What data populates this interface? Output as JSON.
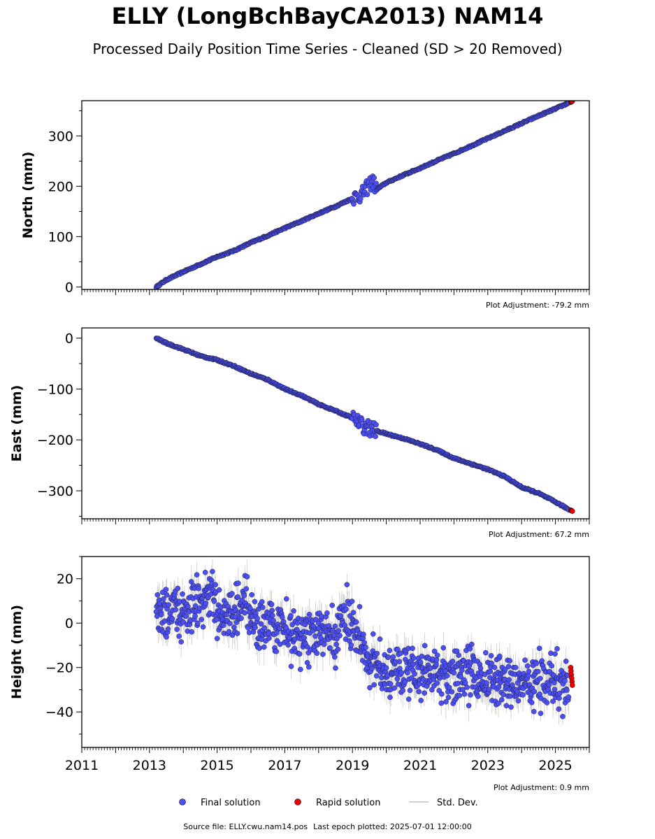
{
  "header": {
    "title": "ELLY (LongBchBayCA2013) NAM14",
    "subtitle": "Processed Daily Position Time Series - Cleaned (SD > 20 Removed)"
  },
  "footer": {
    "source": "Source file: ELLY.cwu.nam14.pos",
    "last_epoch": "Last epoch plotted: 2025-07-01 12:00:00"
  },
  "legend": {
    "final_label": "Final solution",
    "rapid_label": "Rapid solution",
    "std_label": "Std. Dev."
  },
  "colors": {
    "final": "#4b4ef2",
    "rapid": "#e60000",
    "std": "#bfbfbf",
    "point_edge": "#111111"
  },
  "chart_data": {
    "type": "scatter",
    "x_axis": {
      "range": [
        2011,
        2026
      ],
      "tick_labels": [
        "2011",
        "2013",
        "2015",
        "2017",
        "2019",
        "2021",
        "2023",
        "2025"
      ],
      "ticks": [
        2011,
        2013,
        2015,
        2017,
        2019,
        2021,
        2023,
        2025
      ]
    },
    "panels": [
      {
        "name": "north",
        "ylabel": "North (mm)",
        "ylim": [
          -5,
          370
        ],
        "y_ticks": [
          0,
          100,
          200,
          300
        ],
        "adjustment": "Plot Adjustment: -79.2 mm",
        "series": [
          {
            "name": "Final solution",
            "x": [
              2013.2,
              2013.5,
              2014.0,
              2014.5,
              2015.0,
              2015.5,
              2016.0,
              2016.5,
              2017.0,
              2017.5,
              2018.0,
              2018.5,
              2019.0,
              2019.3,
              2019.6,
              2019.7,
              2020.0,
              2020.5,
              2021.0,
              2021.5,
              2022.0,
              2022.5,
              2023.0,
              2023.5,
              2024.0,
              2024.5,
              2025.0,
              2025.4
            ],
            "y": [
              0,
              14,
              30,
              45,
              60,
              72,
              88,
              102,
              117,
              131,
              146,
              160,
              176,
              185,
              212,
              193,
              207,
              222,
              236,
              251,
              265,
              280,
              295,
              310,
              325,
              340,
              354,
              366
            ]
          },
          {
            "name": "Rapid solution",
            "x": [
              2025.45,
              2025.5
            ],
            "y": [
              367,
              369
            ]
          }
        ]
      },
      {
        "name": "east",
        "ylabel": "East (mm)",
        "ylim": [
          -355,
          20
        ],
        "y_ticks": [
          0,
          -100,
          -200,
          -300
        ],
        "adjustment": "Plot Adjustment: 67.2 mm",
        "series": [
          {
            "name": "Final solution",
            "x": [
              2013.2,
              2013.5,
              2014.0,
              2014.5,
              2015.0,
              2015.5,
              2016.0,
              2016.5,
              2017.0,
              2017.5,
              2018.0,
              2018.5,
              2019.0,
              2019.3,
              2019.6,
              2019.7,
              2020.0,
              2020.5,
              2021.0,
              2021.5,
              2022.0,
              2022.5,
              2023.0,
              2023.5,
              2024.0,
              2024.5,
              2025.0,
              2025.4
            ],
            "y": [
              0,
              -10,
              -22,
              -35,
              -43,
              -55,
              -70,
              -82,
              -100,
              -113,
              -130,
              -143,
              -157,
              -172,
              -180,
              -182,
              -188,
              -197,
              -208,
              -220,
              -236,
              -247,
              -258,
              -272,
              -293,
              -305,
              -322,
              -337
            ]
          },
          {
            "name": "Rapid solution",
            "x": [
              2025.45,
              2025.5
            ],
            "y": [
              -338,
              -340
            ]
          }
        ]
      },
      {
        "name": "height",
        "ylabel": "Height (mm)",
        "ylim": [
          -56,
          30
        ],
        "y_ticks": [
          20,
          0,
          -20,
          -40
        ],
        "adjustment": "Plot Adjustment: 0.9 mm",
        "series": [
          {
            "name": "Final solution",
            "x": [
              2013.2,
              2013.5,
              2014.0,
              2014.5,
              2014.7,
              2015.0,
              2015.5,
              2015.8,
              2016.0,
              2016.5,
              2017.0,
              2017.5,
              2018.0,
              2018.5,
              2018.8,
              2019.0,
              2019.3,
              2019.5,
              2019.7,
              2020.0,
              2020.5,
              2021.0,
              2021.5,
              2022.0,
              2022.5,
              2023.0,
              2023.5,
              2024.0,
              2024.5,
              2025.0,
              2025.4
            ],
            "y": [
              6,
              5,
              5,
              8,
              12,
              7,
              3,
              9,
              0,
              -1,
              -3,
              -7,
              -5,
              -8,
              5,
              0,
              -10,
              -15,
              -20,
              -21,
              -22,
              -23,
              -22,
              -24,
              -22,
              -26,
              -27,
              -27,
              -25,
              -28,
              -29
            ]
          },
          {
            "name": "Rapid solution",
            "x": [
              2025.45,
              2025.5
            ],
            "y": [
              -20,
              -28
            ]
          }
        ]
      }
    ]
  }
}
